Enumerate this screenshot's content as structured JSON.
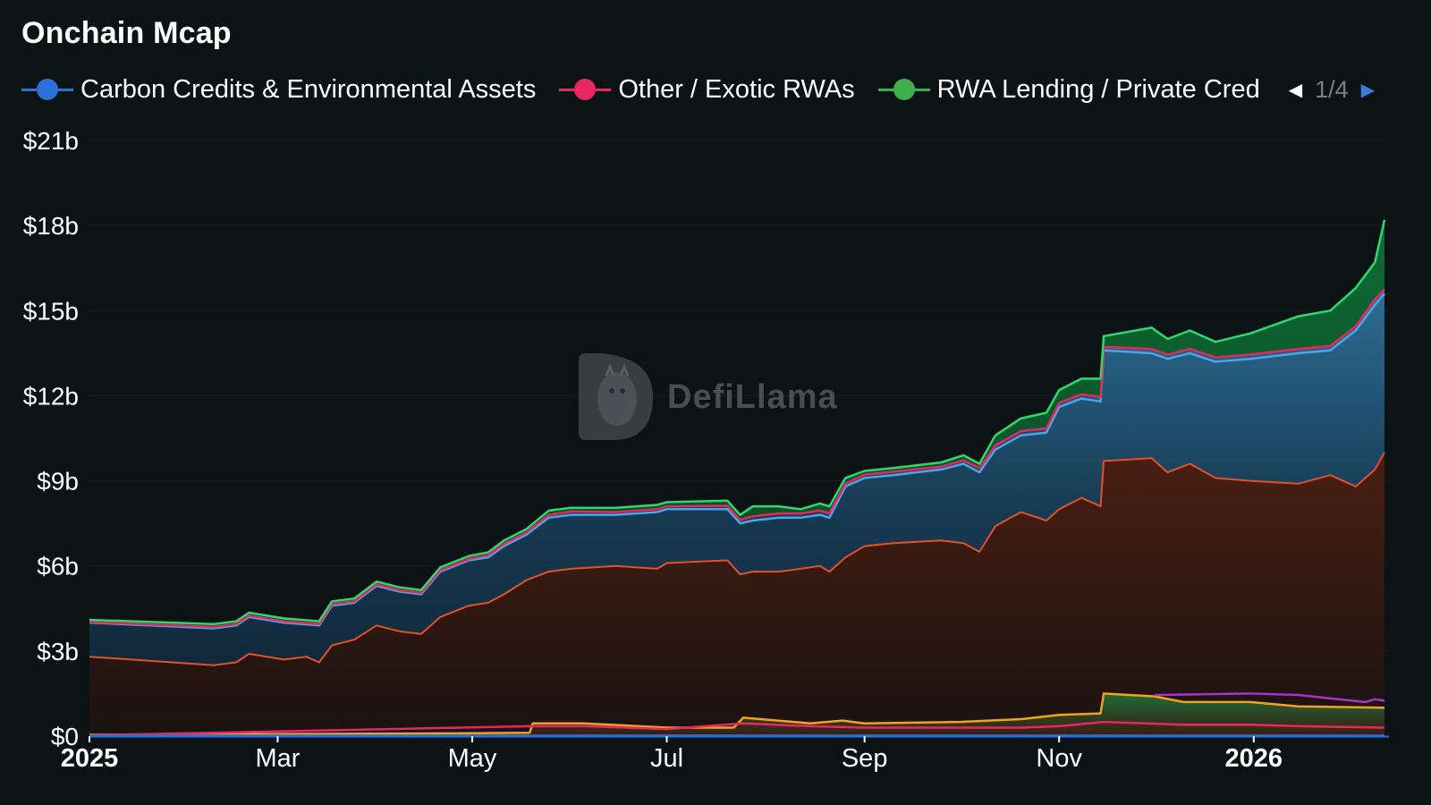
{
  "page": {
    "title": "Onchain Mcap",
    "watermark": "DefiLlama"
  },
  "legend": {
    "items": [
      {
        "label": "Carbon Credits & Environmental Assets",
        "color": "#2d6fd8"
      },
      {
        "label": "Other / Exotic RWAs",
        "color": "#e8265f"
      },
      {
        "label": "RWA Lending / Private Cred",
        "color": "#3fae4d"
      }
    ],
    "pager": {
      "text": "1/4",
      "prev_icon": "caret-left-icon",
      "next_icon": "caret-right-icon"
    }
  },
  "chart_data": {
    "type": "area",
    "title": "Onchain Mcap",
    "stacked": true,
    "x_unit": "date",
    "x_ticks": [
      {
        "date": "2025-01-01",
        "label": "2025",
        "bold": true
      },
      {
        "date": "2025-03-01",
        "label": "Mar"
      },
      {
        "date": "2025-05-01",
        "label": "May"
      },
      {
        "date": "2025-07-01",
        "label": "Jul"
      },
      {
        "date": "2025-09-01",
        "label": "Sep"
      },
      {
        "date": "2025-11-01",
        "label": "Nov"
      },
      {
        "date": "2026-01-01",
        "label": "2026",
        "bold": true
      }
    ],
    "y_ticks": [
      {
        "value": 0,
        "label": "$0"
      },
      {
        "value": 3,
        "label": "$3b"
      },
      {
        "value": 6,
        "label": "$6b"
      },
      {
        "value": 9,
        "label": "$9b"
      },
      {
        "value": 12,
        "label": "$12b"
      },
      {
        "value": 15,
        "label": "$15b"
      },
      {
        "value": 18,
        "label": "$18b"
      },
      {
        "value": 21,
        "label": "$21b"
      }
    ],
    "y_unit": "$b",
    "ylim": [
      0,
      21
    ],
    "xlim": [
      "2025-01-01",
      "2026-02-11"
    ],
    "grid": true,
    "legend_position": "top-left",
    "series": [
      {
        "color": "#e0522a",
        "fill": "#3a1810",
        "points": [
          [
            "2025-01-01",
            2.8
          ],
          [
            "2025-02-09",
            2.5
          ],
          [
            "2025-02-16",
            2.6
          ],
          [
            "2025-02-20",
            2.9
          ],
          [
            "2025-03-03",
            2.7
          ],
          [
            "2025-03-10",
            2.8
          ],
          [
            "2025-03-14",
            2.6
          ],
          [
            "2025-03-18",
            3.2
          ],
          [
            "2025-03-25",
            3.4
          ],
          [
            "2025-04-01",
            3.9
          ],
          [
            "2025-04-08",
            3.7
          ],
          [
            "2025-04-15",
            3.6
          ],
          [
            "2025-04-21",
            4.2
          ],
          [
            "2025-04-30",
            4.6
          ],
          [
            "2025-05-06",
            4.7
          ],
          [
            "2025-05-11",
            5.0
          ],
          [
            "2025-05-18",
            5.5
          ],
          [
            "2025-05-25",
            5.8
          ],
          [
            "2025-06-01",
            5.9
          ],
          [
            "2025-06-15",
            6.0
          ],
          [
            "2025-06-28",
            5.9
          ],
          [
            "2025-07-01",
            6.1
          ],
          [
            "2025-07-20",
            6.2
          ],
          [
            "2025-07-24",
            5.7
          ],
          [
            "2025-07-28",
            5.8
          ],
          [
            "2025-08-05",
            5.8
          ],
          [
            "2025-08-12",
            5.9
          ],
          [
            "2025-08-18",
            6.0
          ],
          [
            "2025-08-21",
            5.8
          ],
          [
            "2025-08-26",
            6.3
          ],
          [
            "2025-09-01",
            6.7
          ],
          [
            "2025-09-10",
            6.8
          ],
          [
            "2025-09-25",
            6.9
          ],
          [
            "2025-10-02",
            6.8
          ],
          [
            "2025-10-07",
            6.5
          ],
          [
            "2025-10-12",
            7.4
          ],
          [
            "2025-10-20",
            7.9
          ],
          [
            "2025-10-28",
            7.6
          ],
          [
            "2025-11-01",
            8.0
          ],
          [
            "2025-11-08",
            8.4
          ],
          [
            "2025-11-14",
            8.1
          ],
          [
            "2025-11-15",
            9.7
          ],
          [
            "2025-11-30",
            9.8
          ],
          [
            "2025-12-05",
            9.3
          ],
          [
            "2025-12-12",
            9.6
          ],
          [
            "2025-12-20",
            9.1
          ],
          [
            "2025-12-31",
            9.0
          ],
          [
            "2026-01-15",
            8.9
          ],
          [
            "2026-01-25",
            9.2
          ],
          [
            "2026-02-02",
            8.8
          ],
          [
            "2026-02-08",
            9.4
          ],
          [
            "2026-02-11",
            10.0
          ]
        ]
      },
      {
        "name": "Carbon Credits & Environmental Assets",
        "color": "#4ba6e8",
        "fill": "#1e4a66",
        "points": [
          [
            "2025-01-01",
            4.0
          ],
          [
            "2025-02-09",
            3.8
          ],
          [
            "2025-02-16",
            3.9
          ],
          [
            "2025-02-20",
            4.2
          ],
          [
            "2025-03-03",
            4.0
          ],
          [
            "2025-03-14",
            3.9
          ],
          [
            "2025-03-18",
            4.6
          ],
          [
            "2025-03-25",
            4.7
          ],
          [
            "2025-04-01",
            5.3
          ],
          [
            "2025-04-08",
            5.1
          ],
          [
            "2025-04-15",
            5.0
          ],
          [
            "2025-04-21",
            5.8
          ],
          [
            "2025-04-30",
            6.2
          ],
          [
            "2025-05-06",
            6.3
          ],
          [
            "2025-05-11",
            6.7
          ],
          [
            "2025-05-18",
            7.1
          ],
          [
            "2025-05-25",
            7.7
          ],
          [
            "2025-06-01",
            7.8
          ],
          [
            "2025-06-15",
            7.8
          ],
          [
            "2025-06-28",
            7.9
          ],
          [
            "2025-07-01",
            8.0
          ],
          [
            "2025-07-20",
            8.0
          ],
          [
            "2025-07-24",
            7.5
          ],
          [
            "2025-07-28",
            7.6
          ],
          [
            "2025-08-05",
            7.7
          ],
          [
            "2025-08-12",
            7.7
          ],
          [
            "2025-08-18",
            7.8
          ],
          [
            "2025-08-21",
            7.7
          ],
          [
            "2025-08-26",
            8.8
          ],
          [
            "2025-09-01",
            9.1
          ],
          [
            "2025-09-10",
            9.2
          ],
          [
            "2025-09-25",
            9.4
          ],
          [
            "2025-10-02",
            9.6
          ],
          [
            "2025-10-07",
            9.3
          ],
          [
            "2025-10-12",
            10.1
          ],
          [
            "2025-10-20",
            10.6
          ],
          [
            "2025-10-28",
            10.7
          ],
          [
            "2025-11-01",
            11.6
          ],
          [
            "2025-11-08",
            11.9
          ],
          [
            "2025-11-14",
            11.8
          ],
          [
            "2025-11-15",
            13.6
          ],
          [
            "2025-11-30",
            13.5
          ],
          [
            "2025-12-05",
            13.3
          ],
          [
            "2025-12-12",
            13.5
          ],
          [
            "2025-12-20",
            13.2
          ],
          [
            "2025-12-31",
            13.3
          ],
          [
            "2026-01-15",
            13.5
          ],
          [
            "2026-01-25",
            13.6
          ],
          [
            "2026-02-02",
            14.3
          ],
          [
            "2026-02-08",
            15.2
          ],
          [
            "2026-02-11",
            15.6
          ]
        ]
      },
      {
        "name": "Other / Exotic RWAs",
        "color": "#e8265f",
        "points": [
          [
            "2025-01-01",
            4.02
          ],
          [
            "2025-02-09",
            3.85
          ],
          [
            "2025-02-16",
            3.95
          ],
          [
            "2025-02-20",
            4.25
          ],
          [
            "2025-03-03",
            4.05
          ],
          [
            "2025-03-14",
            3.95
          ],
          [
            "2025-03-18",
            4.65
          ],
          [
            "2025-03-25",
            4.75
          ],
          [
            "2025-04-01",
            5.35
          ],
          [
            "2025-04-08",
            5.15
          ],
          [
            "2025-04-15",
            5.05
          ],
          [
            "2025-04-21",
            5.85
          ],
          [
            "2025-04-30",
            6.25
          ],
          [
            "2025-05-06",
            6.38
          ],
          [
            "2025-05-11",
            6.78
          ],
          [
            "2025-05-18",
            7.18
          ],
          [
            "2025-05-25",
            7.8
          ],
          [
            "2025-06-01",
            7.92
          ],
          [
            "2025-06-15",
            7.9
          ],
          [
            "2025-06-28",
            8.0
          ],
          [
            "2025-07-01",
            8.1
          ],
          [
            "2025-07-20",
            8.12
          ],
          [
            "2025-07-24",
            7.62
          ],
          [
            "2025-07-28",
            7.75
          ],
          [
            "2025-08-05",
            7.85
          ],
          [
            "2025-08-12",
            7.85
          ],
          [
            "2025-08-18",
            7.95
          ],
          [
            "2025-08-21",
            7.85
          ],
          [
            "2025-08-26",
            8.9
          ],
          [
            "2025-09-01",
            9.22
          ],
          [
            "2025-09-10",
            9.32
          ],
          [
            "2025-09-25",
            9.5
          ],
          [
            "2025-10-02",
            9.72
          ],
          [
            "2025-10-07",
            9.45
          ],
          [
            "2025-10-12",
            10.25
          ],
          [
            "2025-10-20",
            10.75
          ],
          [
            "2025-10-28",
            10.85
          ],
          [
            "2025-11-01",
            11.75
          ],
          [
            "2025-11-08",
            12.05
          ],
          [
            "2025-11-14",
            11.95
          ],
          [
            "2025-11-15",
            13.72
          ],
          [
            "2025-11-30",
            13.65
          ],
          [
            "2025-12-05",
            13.45
          ],
          [
            "2025-12-12",
            13.65
          ],
          [
            "2025-12-20",
            13.35
          ],
          [
            "2025-12-31",
            13.45
          ],
          [
            "2026-01-15",
            13.65
          ],
          [
            "2026-01-25",
            13.75
          ],
          [
            "2026-02-02",
            14.45
          ],
          [
            "2026-02-08",
            15.4
          ],
          [
            "2026-02-11",
            15.75
          ]
        ]
      },
      {
        "name": "RWA Lending / Private Cred",
        "color": "#2dd86e",
        "fill": "#0e5a2a",
        "points": [
          [
            "2025-01-01",
            4.1
          ],
          [
            "2025-02-09",
            3.95
          ],
          [
            "2025-02-16",
            4.05
          ],
          [
            "2025-02-20",
            4.35
          ],
          [
            "2025-03-03",
            4.15
          ],
          [
            "2025-03-14",
            4.05
          ],
          [
            "2025-03-18",
            4.75
          ],
          [
            "2025-03-25",
            4.85
          ],
          [
            "2025-04-01",
            5.45
          ],
          [
            "2025-04-08",
            5.25
          ],
          [
            "2025-04-15",
            5.15
          ],
          [
            "2025-04-21",
            5.95
          ],
          [
            "2025-04-30",
            6.35
          ],
          [
            "2025-05-06",
            6.48
          ],
          [
            "2025-05-11",
            6.9
          ],
          [
            "2025-05-18",
            7.3
          ],
          [
            "2025-05-25",
            7.95
          ],
          [
            "2025-06-01",
            8.05
          ],
          [
            "2025-06-15",
            8.05
          ],
          [
            "2025-06-28",
            8.15
          ],
          [
            "2025-07-01",
            8.25
          ],
          [
            "2025-07-20",
            8.3
          ],
          [
            "2025-07-24",
            7.8
          ],
          [
            "2025-07-28",
            8.1
          ],
          [
            "2025-08-05",
            8.1
          ],
          [
            "2025-08-12",
            8.0
          ],
          [
            "2025-08-18",
            8.2
          ],
          [
            "2025-08-21",
            8.1
          ],
          [
            "2025-08-26",
            9.1
          ],
          [
            "2025-09-01",
            9.35
          ],
          [
            "2025-09-10",
            9.45
          ],
          [
            "2025-09-25",
            9.65
          ],
          [
            "2025-10-02",
            9.9
          ],
          [
            "2025-10-07",
            9.6
          ],
          [
            "2025-10-12",
            10.6
          ],
          [
            "2025-10-20",
            11.2
          ],
          [
            "2025-10-28",
            11.4
          ],
          [
            "2025-11-01",
            12.2
          ],
          [
            "2025-11-08",
            12.6
          ],
          [
            "2025-11-14",
            12.6
          ],
          [
            "2025-11-15",
            14.1
          ],
          [
            "2025-11-30",
            14.4
          ],
          [
            "2025-12-05",
            14.0
          ],
          [
            "2025-12-12",
            14.3
          ],
          [
            "2025-12-20",
            13.9
          ],
          [
            "2025-12-31",
            14.2
          ],
          [
            "2026-01-15",
            14.8
          ],
          [
            "2026-01-25",
            15.0
          ],
          [
            "2026-02-02",
            15.8
          ],
          [
            "2026-02-08",
            16.7
          ],
          [
            "2026-02-11",
            18.2
          ]
        ]
      },
      {
        "color": "#f3a21b",
        "fill": "#5a2a12",
        "points": [
          [
            "2025-01-01",
            0.05
          ],
          [
            "2025-05-01",
            0.1
          ],
          [
            "2025-05-19",
            0.12
          ],
          [
            "2025-05-20",
            0.45
          ],
          [
            "2025-06-05",
            0.45
          ],
          [
            "2025-07-01",
            0.3
          ],
          [
            "2025-07-22",
            0.3
          ],
          [
            "2025-07-25",
            0.65
          ],
          [
            "2025-08-15",
            0.45
          ],
          [
            "2025-08-25",
            0.55
          ],
          [
            "2025-09-01",
            0.45
          ],
          [
            "2025-10-01",
            0.5
          ],
          [
            "2025-10-20",
            0.6
          ],
          [
            "2025-11-01",
            0.75
          ],
          [
            "2025-11-14",
            0.8
          ],
          [
            "2025-11-15",
            1.5
          ],
          [
            "2025-12-01",
            1.4
          ],
          [
            "2025-12-10",
            1.2
          ],
          [
            "2025-12-31",
            1.2
          ],
          [
            "2026-01-15",
            1.05
          ],
          [
            "2026-02-11",
            1.0
          ]
        ]
      },
      {
        "color": "#e8265f",
        "points": [
          [
            "2025-01-01",
            0.03
          ],
          [
            "2025-05-20",
            0.35
          ],
          [
            "2025-06-05",
            0.35
          ],
          [
            "2025-07-01",
            0.25
          ],
          [
            "2025-07-25",
            0.45
          ],
          [
            "2025-08-15",
            0.35
          ],
          [
            "2025-09-01",
            0.3
          ],
          [
            "2025-10-20",
            0.3
          ],
          [
            "2025-11-01",
            0.35
          ],
          [
            "2025-11-15",
            0.5
          ],
          [
            "2025-12-10",
            0.4
          ],
          [
            "2025-12-31",
            0.4
          ],
          [
            "2026-01-15",
            0.35
          ],
          [
            "2026-02-11",
            0.3
          ]
        ]
      },
      {
        "color": "#a535c7",
        "points": [
          [
            "2025-12-01",
            1.45
          ],
          [
            "2025-12-31",
            1.5
          ],
          [
            "2026-01-15",
            1.45
          ],
          [
            "2026-02-05",
            1.2
          ],
          [
            "2026-02-08",
            1.3
          ],
          [
            "2026-02-11",
            1.25
          ]
        ]
      },
      {
        "color": "#2d6fd8",
        "points": [
          [
            "2025-01-01",
            0.02
          ],
          [
            "2026-02-11",
            0.02
          ]
        ]
      }
    ]
  }
}
